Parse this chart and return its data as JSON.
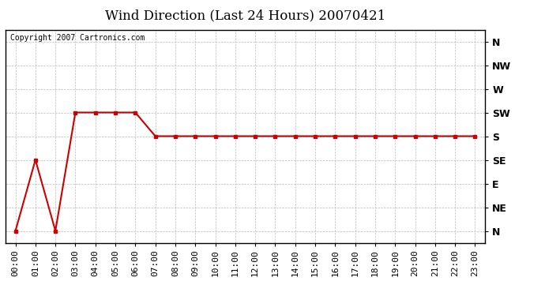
{
  "title": "Wind Direction (Last 24 Hours) 20070421",
  "copyright": "Copyright 2007 Cartronics.com",
  "x_labels": [
    "00:00",
    "01:00",
    "02:00",
    "03:00",
    "04:00",
    "05:00",
    "06:00",
    "07:00",
    "08:00",
    "09:00",
    "10:00",
    "11:00",
    "12:00",
    "13:00",
    "14:00",
    "15:00",
    "16:00",
    "17:00",
    "18:00",
    "19:00",
    "20:00",
    "21:00",
    "22:00",
    "23:00"
  ],
  "y_ticks": [
    0,
    1,
    2,
    3,
    4,
    5,
    6,
    7,
    8
  ],
  "y_labels": [
    "N",
    "NE",
    "E",
    "SE",
    "S",
    "SW",
    "W",
    "NW",
    "N"
  ],
  "data_y": [
    0,
    3,
    0,
    5,
    5,
    5,
    5,
    4,
    4,
    4,
    4,
    4,
    4,
    4,
    4,
    4,
    4,
    4,
    4,
    4,
    4,
    4,
    4,
    4
  ],
  "line_color": "#cc0000",
  "marker": "s",
  "marker_size": 3,
  "line_width": 1.5,
  "bg_color": "#ffffff",
  "plot_bg_color": "#ffffff",
  "grid_color": "#bbbbbb",
  "title_fontsize": 12,
  "copyright_fontsize": 7,
  "tick_fontsize": 8,
  "ylim": [
    -0.5,
    8.5
  ],
  "xlim": [
    -0.5,
    23.5
  ]
}
